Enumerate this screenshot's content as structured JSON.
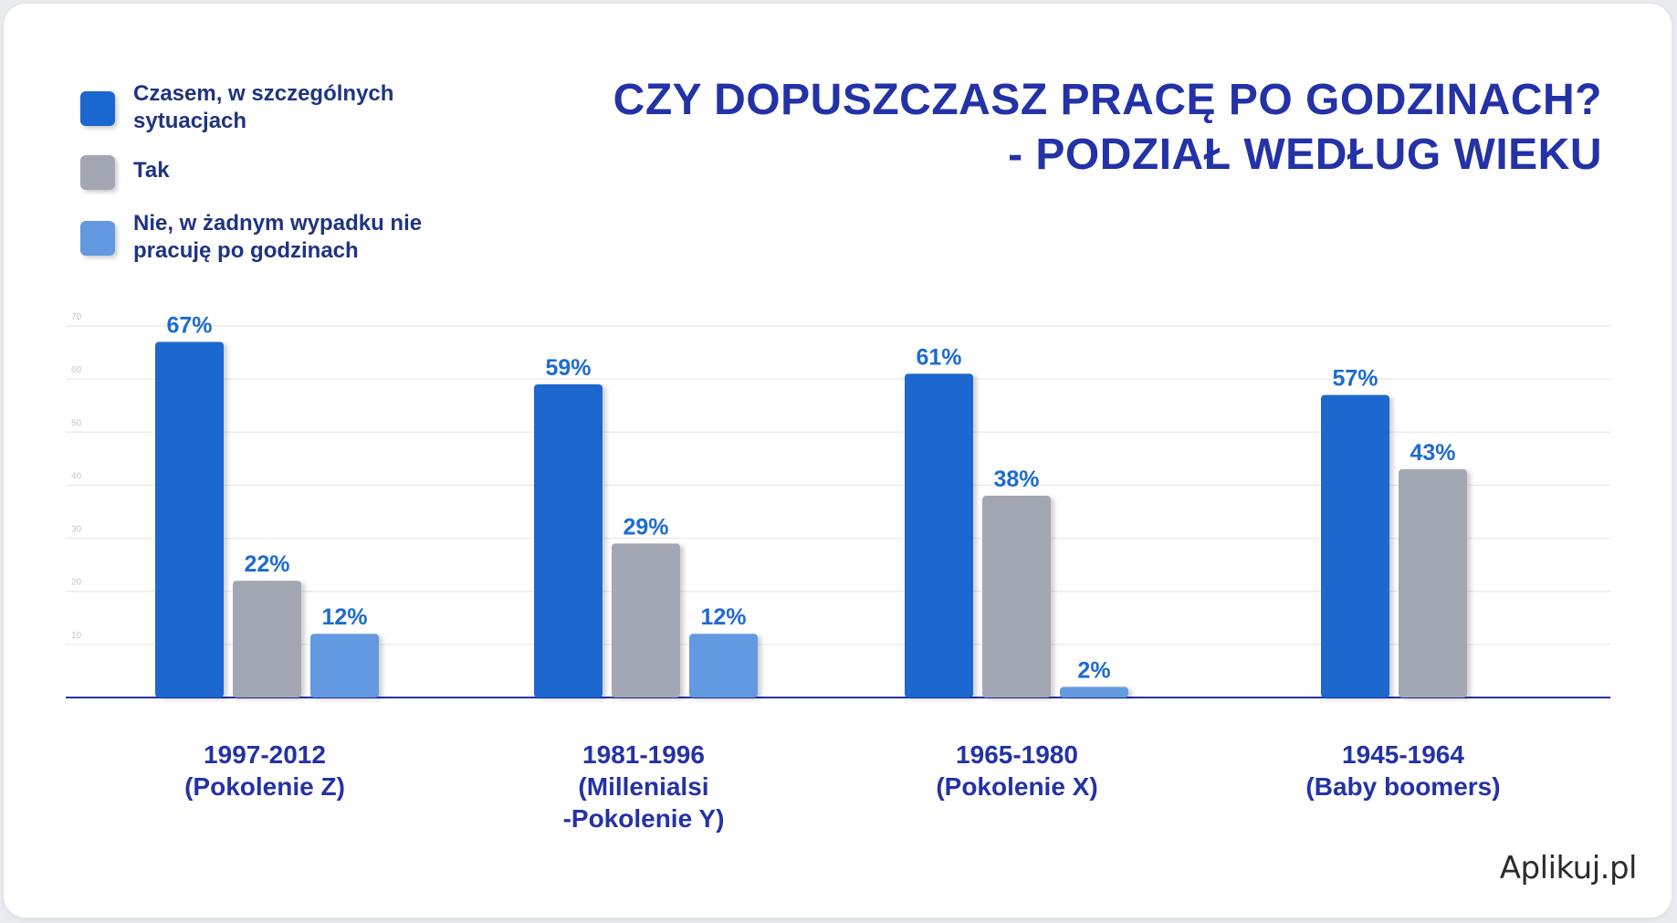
{
  "title_line1": "CZY DOPUSZCZASZ PRACĘ PO GODZINACH?",
  "title_line2": "- PODZIAŁ WEDŁUG WIEKU",
  "logo_text": "Aplikuj.pl",
  "colors": {
    "series_0": "#1a67cf",
    "series_1": "#a2a7b3",
    "series_2": "#6399e0",
    "label": "#1d6bd0",
    "category_label": "#2332a6",
    "axis": "#2332a6",
    "grid": "#e8e8ec"
  },
  "legend": [
    {
      "line1": "Czasem, w szczególnych",
      "line2": "sytuacjach",
      "color": "#1a67cf"
    },
    {
      "line1": "Tak",
      "line2": "",
      "color": "#a2a7b3"
    },
    {
      "line1": "Nie, w żadnym wypadku nie",
      "line2": "pracuję po godzinach",
      "color": "#6399e0"
    }
  ],
  "chart_data": {
    "type": "bar",
    "title": "CZY DOPUSZCZASZ PRACĘ PO GODZINACH? - PODZIAŁ WEDŁUG WIEKU",
    "categories": [
      [
        "1997-2012",
        "(Pokolenie Z)"
      ],
      [
        "1981-1996",
        "(Millenialsi",
        "-Pokolenie Y)"
      ],
      [
        "1965-1980",
        "(Pokolenie X)"
      ],
      [
        "1945-1964",
        "(Baby boomers)"
      ]
    ],
    "series": [
      {
        "name": "Czasem, w szczególnych sytuacjach",
        "values": [
          67,
          59,
          61,
          57
        ],
        "labels": [
          "67%",
          "59%",
          "61%",
          "57%"
        ]
      },
      {
        "name": "Tak",
        "values": [
          22,
          29,
          38,
          43
        ],
        "labels": [
          "22%",
          "29%",
          "38%",
          "43%"
        ]
      },
      {
        "name": "Nie, w żadnym wypadku nie pracuję po godzinach",
        "values": [
          12,
          12,
          2,
          null
        ],
        "labels": [
          "12%",
          "12%",
          "2%",
          ""
        ]
      }
    ],
    "ylim": [
      0,
      70
    ],
    "yticks": [
      10,
      20,
      30,
      40,
      50,
      60,
      70
    ],
    "grid": true,
    "legend_position": "top-left"
  }
}
